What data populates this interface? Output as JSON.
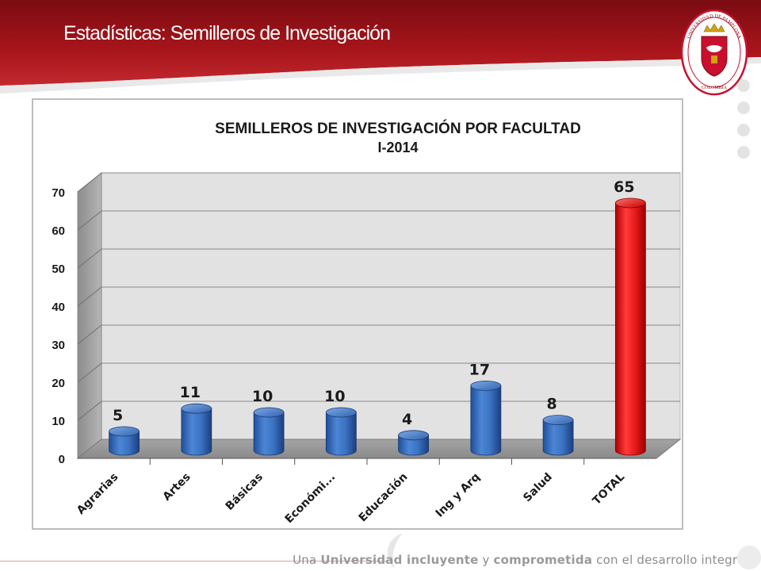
{
  "slide": {
    "title": "Estadísticas: Semilleros de Investigación",
    "logo": {
      "ring_text_top": "UNIVERSIDAD DE PAMPLONA",
      "ring_text_bottom": "COLOMBIA",
      "colors": {
        "ring": "#c8102e",
        "shield": "#c8102e",
        "crown": "#d4a017"
      }
    },
    "footer": {
      "part1": "Una",
      "part2": "Universidad incluyente",
      "part3": "y",
      "part4": "comprometida",
      "part5": "con el desarrollo integral"
    }
  },
  "colors": {
    "header_dark": "#8b0f14",
    "header_light": "#c0262b",
    "bar_blue": "#3a6fc0",
    "bar_red": "#e01616"
  },
  "chart_data": {
    "type": "bar",
    "title": "SEMILLEROS DE INVESTIGACIÓN POR FACULTAD",
    "subtitle": "I-2014",
    "categories": [
      "Agrarias",
      "Artes",
      "Básicas",
      "Económi...",
      "Educación",
      "Ing y Arq",
      "Salud",
      "TOTAL"
    ],
    "values": [
      5,
      11,
      10,
      10,
      4,
      17,
      8,
      65
    ],
    "bar_colors": [
      "#3a6fc0",
      "#3a6fc0",
      "#3a6fc0",
      "#3a6fc0",
      "#3a6fc0",
      "#3a6fc0",
      "#3a6fc0",
      "#e01616"
    ],
    "ylim": [
      0,
      70
    ],
    "yticks": [
      0,
      10,
      20,
      30,
      40,
      50,
      60,
      70
    ],
    "grid": true,
    "legend": false,
    "data_labels": true,
    "style": "3d-cylinder"
  }
}
